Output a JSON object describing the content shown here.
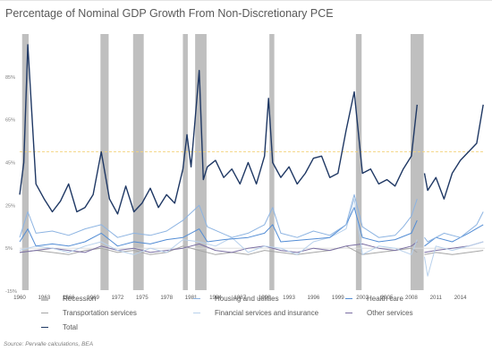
{
  "title": "Percentage of Nominal GDP Growth From Non-Discretionary PCE",
  "source": "Source: Pervalle calculations, BEA",
  "colors": {
    "recession": "#bfbfbf",
    "housing": "#8db4e2",
    "health": "#538dd5",
    "transport": "#a6a6a6",
    "financial": "#b8d1ec",
    "other": "#7b6fa3",
    "total": "#1f3864",
    "refline": "#f2d27c"
  },
  "legend": [
    {
      "label": "Recession",
      "key": "recession"
    },
    {
      "label": "Housing and utilities",
      "key": "housing"
    },
    {
      "label": "Health care",
      "key": "health"
    },
    {
      "label": "Transportation services",
      "key": "transport"
    },
    {
      "label": "Financial services and insurance",
      "key": "financial"
    },
    {
      "label": "Other services",
      "key": "other"
    },
    {
      "label": "Total",
      "key": "total"
    }
  ],
  "chart_data": {
    "type": "line",
    "title": "Percentage of Nominal GDP Growth From Non-Discretionary PCE",
    "xlabel": "",
    "ylabel": "",
    "xlim": [
      1960,
      2017
    ],
    "ylim": [
      -15,
      105
    ],
    "y_ticks": [
      "-15%",
      "5%",
      "25%",
      "45%",
      "65%",
      "85%"
    ],
    "y_tick_values": [
      -15,
      5,
      25,
      45,
      65,
      85
    ],
    "x_ticks": [
      "1960",
      "1963",
      "1966",
      "1969",
      "1972",
      "1975",
      "1978",
      "1981",
      "1984",
      "1987",
      "1990",
      "1993",
      "1996",
      "1999",
      "2002",
      "2005",
      "2008",
      "2011",
      "2014"
    ],
    "reference_line": 50,
    "recessions": [
      [
        1960.3,
        1961.1
      ],
      [
        1969.9,
        1970.9
      ],
      [
        1973.9,
        1975.2
      ],
      [
        1980.0,
        1980.6
      ],
      [
        1981.5,
        1982.9
      ],
      [
        1990.6,
        1991.2
      ],
      [
        2001.2,
        2001.9
      ],
      [
        2007.9,
        2009.5
      ]
    ],
    "series": [
      {
        "name": "Total",
        "key": "total",
        "x": [
          1960,
          1960.5,
          1961,
          1962,
          1963,
          1964,
          1965,
          1966,
          1967,
          1968,
          1969,
          1970,
          1971,
          1972,
          1973,
          1974,
          1975,
          1976,
          1977,
          1978,
          1979,
          1980,
          1980.5,
          1981,
          1981.5,
          1982,
          1982.5,
          1983,
          1984,
          1985,
          1986,
          1987,
          1988,
          1989,
          1990,
          1990.5,
          1991,
          1992,
          1993,
          1994,
          1995,
          1996,
          1997,
          1998,
          1999,
          2000,
          2001,
          2002,
          2003,
          2004,
          2005,
          2006,
          2007,
          2008,
          2008.7,
          null,
          2009.6,
          2010,
          2011,
          2012,
          2013,
          2014,
          2015,
          2016,
          2016.8
        ],
        "y": [
          30,
          45,
          100,
          35,
          28,
          22,
          27,
          35,
          22,
          24,
          30,
          50,
          28,
          21,
          34,
          22,
          26,
          33,
          24,
          30,
          26,
          42,
          58,
          43,
          65,
          88,
          37,
          43,
          46,
          38,
          42,
          35,
          45,
          35,
          48,
          75,
          45,
          38,
          43,
          35,
          40,
          47,
          48,
          38,
          40,
          60,
          78,
          40,
          42,
          35,
          37,
          34,
          42,
          48,
          72,
          null,
          40,
          32,
          38,
          28,
          40,
          46,
          50,
          54,
          72
        ]
      },
      {
        "name": "Housing and utilities",
        "key": "housing",
        "x": [
          1960,
          1961,
          1962,
          1964,
          1966,
          1968,
          1970,
          1972,
          1974,
          1976,
          1978,
          1980,
          1982,
          1983,
          1986,
          1988,
          1990,
          1991,
          1992,
          1994,
          1996,
          1998,
          2000,
          2001,
          2002,
          2004,
          2006,
          2007,
          2008,
          2008.7,
          null,
          2009.6,
          2010,
          2012,
          2014,
          2016,
          2016.8
        ],
        "y": [
          10,
          22,
          12,
          13,
          11,
          14,
          16,
          10,
          12,
          11,
          13,
          18,
          25,
          15,
          10,
          12,
          16,
          24,
          12,
          10,
          13,
          11,
          16,
          30,
          15,
          10,
          11,
          15,
          20,
          28,
          null,
          10,
          8,
          12,
          10,
          16,
          22
        ]
      },
      {
        "name": "Health care",
        "key": "health",
        "x": [
          1960,
          1961,
          1962,
          1964,
          1966,
          1968,
          1970,
          1972,
          1974,
          1976,
          1978,
          1980,
          1982,
          1983,
          1985,
          1988,
          1990,
          1991,
          1992,
          1995,
          1998,
          2000,
          2001,
          2002,
          2004,
          2006,
          2008,
          2008.7,
          null,
          2009.6,
          2011,
          2013,
          2015,
          2016.8
        ],
        "y": [
          8,
          14,
          6,
          7,
          6,
          8,
          12,
          6,
          8,
          7,
          9,
          10,
          14,
          8,
          9,
          10,
          12,
          16,
          8,
          9,
          10,
          16,
          24,
          10,
          8,
          9,
          12,
          18,
          null,
          6,
          10,
          8,
          12,
          16
        ]
      },
      {
        "name": "Transportation services",
        "key": "transport",
        "x": [
          1960,
          1962,
          1964,
          1966,
          1968,
          1970,
          1972,
          1974,
          1976,
          1978,
          1980,
          1982,
          1984,
          1986,
          1988,
          1990,
          1992,
          1994,
          1996,
          1998,
          2000,
          2002,
          2004,
          2006,
          2008,
          2008.7,
          null,
          2009.6,
          2011,
          2013,
          2015,
          2016.8
        ],
        "y": [
          3,
          4,
          3,
          2,
          4,
          5,
          3,
          4,
          2,
          3,
          6,
          4,
          2,
          3,
          2,
          4,
          3,
          2,
          3,
          4,
          6,
          2,
          3,
          4,
          5,
          3,
          null,
          2,
          3,
          2,
          3,
          4
        ]
      },
      {
        "name": "Financial services and insurance",
        "key": "financial",
        "x": [
          1960,
          1962,
          1964,
          1966,
          1968,
          1970,
          1972,
          1974,
          1976,
          1978,
          1980,
          1982,
          1984,
          1986,
          1988,
          1990,
          1992,
          1994,
          1996,
          1998,
          2000,
          2001,
          2002,
          2004,
          2006,
          2008,
          2008.7,
          null,
          2009.6,
          2010,
          2011,
          2013,
          2015,
          2016.8
        ],
        "y": [
          4,
          6,
          5,
          3,
          6,
          8,
          4,
          2,
          5,
          3,
          9,
          8,
          6,
          10,
          3,
          6,
          5,
          2,
          8,
          10,
          14,
          28,
          2,
          6,
          5,
          2,
          9,
          null,
          1,
          -8,
          6,
          4,
          6,
          8
        ]
      },
      {
        "name": "Other services",
        "key": "other",
        "x": [
          1960,
          1962,
          1964,
          1966,
          1968,
          1970,
          1972,
          1974,
          1976,
          1978,
          1980,
          1982,
          1984,
          1986,
          1988,
          1990,
          1992,
          1994,
          1996,
          1998,
          2000,
          2002,
          2004,
          2006,
          2008,
          2008.7,
          null,
          2009.6,
          2011,
          2013,
          2015,
          2016.8
        ],
        "y": [
          3,
          4,
          5,
          4,
          3,
          6,
          4,
          5,
          3,
          4,
          5,
          7,
          4,
          3,
          5,
          6,
          4,
          3,
          5,
          4,
          6,
          7,
          5,
          4,
          6,
          8,
          null,
          3,
          4,
          5,
          6,
          8
        ]
      }
    ]
  }
}
